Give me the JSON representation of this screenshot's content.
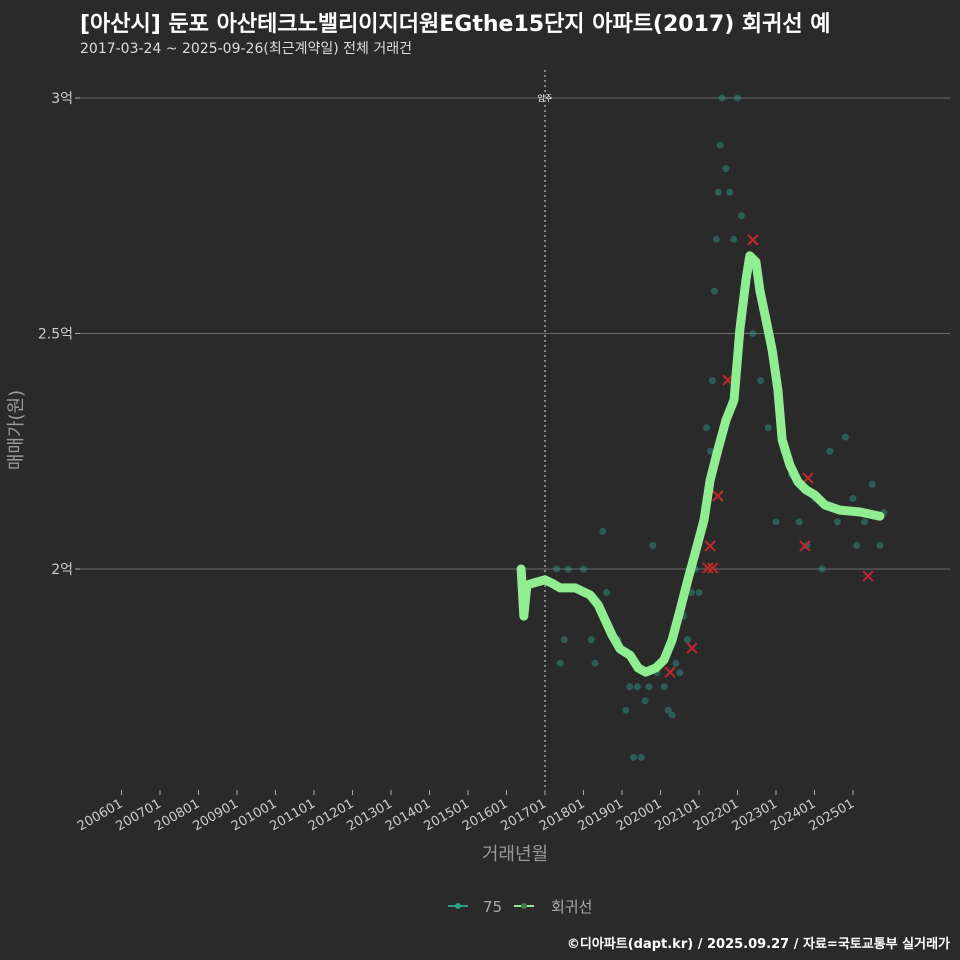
{
  "chart_data": {
    "type": "scatter",
    "title": "[아산시] 둔포 아산테크노밸리이지더원EGthe15단지 아파트(2017) 회귀선 예",
    "subtitle": "2017-03-24 ~ 2025-09-26(최근계약일) 전체 거래건",
    "xlabel": "거래년월",
    "ylabel": "매매가(원)",
    "xlim": [
      2005.6,
      2026.2
    ],
    "ylim": [
      1.55,
      3.06
    ],
    "x_ticks": [
      {
        "v": 2006,
        "label": "200601"
      },
      {
        "v": 2007,
        "label": "200701"
      },
      {
        "v": 2008,
        "label": "200801"
      },
      {
        "v": 2009,
        "label": "200901"
      },
      {
        "v": 2010,
        "label": "201001"
      },
      {
        "v": 2011,
        "label": "201101"
      },
      {
        "v": 2012,
        "label": "201201"
      },
      {
        "v": 2013,
        "label": "201301"
      },
      {
        "v": 2014,
        "label": "201401"
      },
      {
        "v": 2015,
        "label": "201501"
      },
      {
        "v": 2016,
        "label": "201601"
      },
      {
        "v": 2017,
        "label": "201701"
      },
      {
        "v": 2018,
        "label": "201801"
      },
      {
        "v": 2019,
        "label": "201901"
      },
      {
        "v": 2020,
        "label": "202001"
      },
      {
        "v": 2021,
        "label": "202101"
      },
      {
        "v": 2022,
        "label": "202201"
      },
      {
        "v": 2023,
        "label": "202301"
      },
      {
        "v": 2024,
        "label": "202401"
      },
      {
        "v": 2025,
        "label": "202501"
      }
    ],
    "y_ticks": [
      {
        "v": 2,
        "label": "2억"
      },
      {
        "v": 2.5,
        "label": "2.5억"
      },
      {
        "v": 3,
        "label": "3억"
      }
    ],
    "annotation": {
      "x": 2017,
      "label": "입주"
    },
    "legend": {
      "position": "bottom",
      "items": [
        {
          "label": "75",
          "color": "#2a9d8f"
        },
        {
          "label": "회귀선",
          "color": "#90ee90"
        }
      ]
    },
    "series": [
      {
        "name": "75",
        "type": "scatter",
        "color": "#2a9d8f",
        "points": [
          [
            2017.3,
            2.0
          ],
          [
            2017.5,
            1.85
          ],
          [
            2017.4,
            1.8
          ],
          [
            2017.6,
            2.0
          ],
          [
            2017.8,
            1.96
          ],
          [
            2018.0,
            2.0
          ],
          [
            2018.2,
            1.85
          ],
          [
            2018.5,
            2.08
          ],
          [
            2018.6,
            1.95
          ],
          [
            2018.3,
            1.8
          ],
          [
            2018.9,
            1.85
          ],
          [
            2019.1,
            1.7
          ],
          [
            2019.2,
            1.75
          ],
          [
            2019.3,
            1.6
          ],
          [
            2019.4,
            1.75
          ],
          [
            2019.5,
            1.6
          ],
          [
            2019.6,
            1.72
          ],
          [
            2019.7,
            1.75
          ],
          [
            2019.8,
            2.05
          ],
          [
            2019.9,
            1.78
          ],
          [
            2020.0,
            1.8
          ],
          [
            2020.1,
            1.75
          ],
          [
            2020.2,
            1.7
          ],
          [
            2020.3,
            1.69
          ],
          [
            2020.4,
            1.8
          ],
          [
            2020.5,
            1.78
          ],
          [
            2020.6,
            1.9
          ],
          [
            2020.7,
            1.85
          ],
          [
            2020.8,
            1.95
          ],
          [
            2020.9,
            2.0
          ],
          [
            2021.0,
            1.95
          ],
          [
            2021.1,
            2.1
          ],
          [
            2021.2,
            2.3
          ],
          [
            2021.3,
            2.25
          ],
          [
            2021.35,
            2.4
          ],
          [
            2021.4,
            2.59
          ],
          [
            2021.45,
            2.7
          ],
          [
            2021.5,
            2.8
          ],
          [
            2021.55,
            2.9
          ],
          [
            2021.6,
            3.0
          ],
          [
            2021.7,
            2.85
          ],
          [
            2021.8,
            2.8
          ],
          [
            2021.9,
            2.7
          ],
          [
            2022.0,
            3.0
          ],
          [
            2022.1,
            2.75
          ],
          [
            2022.2,
            2.6
          ],
          [
            2022.4,
            2.5
          ],
          [
            2022.6,
            2.4
          ],
          [
            2022.8,
            2.3
          ],
          [
            2023.0,
            2.1
          ],
          [
            2023.2,
            2.25
          ],
          [
            2023.4,
            2.2
          ],
          [
            2023.6,
            2.1
          ],
          [
            2023.8,
            2.05
          ],
          [
            2024.0,
            2.15
          ],
          [
            2024.2,
            2.0
          ],
          [
            2024.4,
            2.25
          ],
          [
            2024.6,
            2.1
          ],
          [
            2024.8,
            2.28
          ],
          [
            2025.0,
            2.15
          ],
          [
            2025.1,
            2.05
          ],
          [
            2025.3,
            2.1
          ],
          [
            2025.5,
            2.18
          ],
          [
            2025.7,
            2.05
          ],
          [
            2025.8,
            2.12
          ]
        ]
      },
      {
        "name": "highlighted",
        "type": "x-marker",
        "color": "#c0282d",
        "points": [
          [
            2020.25,
            1.781
          ],
          [
            2020.82,
            1.832
          ],
          [
            2021.23,
            2.002
          ],
          [
            2021.36,
            2.002
          ],
          [
            2021.29,
            2.049
          ],
          [
            2021.49,
            2.155
          ],
          [
            2021.75,
            2.401
          ],
          [
            2022.4,
            2.699
          ],
          [
            2023.75,
            2.049
          ],
          [
            2023.83,
            2.193
          ],
          [
            2025.39,
            1.985
          ]
        ]
      },
      {
        "name": "회귀선",
        "type": "line",
        "color": "#90ee90",
        "points": [
          [
            2016.38,
            2.0
          ],
          [
            2016.45,
            1.9
          ],
          [
            2016.53,
            1.966
          ],
          [
            2016.69,
            1.97
          ],
          [
            2017.0,
            1.977
          ],
          [
            2017.18,
            1.97
          ],
          [
            2017.39,
            1.96
          ],
          [
            2017.78,
            1.96
          ],
          [
            2018.17,
            1.945
          ],
          [
            2018.38,
            1.924
          ],
          [
            2018.56,
            1.892
          ],
          [
            2018.74,
            1.86
          ],
          [
            2018.95,
            1.83
          ],
          [
            2019.21,
            1.817
          ],
          [
            2019.42,
            1.79
          ],
          [
            2019.62,
            1.781
          ],
          [
            2019.88,
            1.79
          ],
          [
            2020.09,
            1.807
          ],
          [
            2020.3,
            1.849
          ],
          [
            2020.51,
            1.913
          ],
          [
            2020.71,
            1.977
          ],
          [
            2020.92,
            2.04
          ],
          [
            2021.13,
            2.104
          ],
          [
            2021.29,
            2.189
          ],
          [
            2021.49,
            2.253
          ],
          [
            2021.7,
            2.316
          ],
          [
            2021.91,
            2.359
          ],
          [
            2022.06,
            2.507
          ],
          [
            2022.22,
            2.614
          ],
          [
            2022.32,
            2.665
          ],
          [
            2022.48,
            2.652
          ],
          [
            2022.58,
            2.592
          ],
          [
            2022.74,
            2.529
          ],
          [
            2022.9,
            2.465
          ],
          [
            2023.05,
            2.38
          ],
          [
            2023.16,
            2.274
          ],
          [
            2023.36,
            2.221
          ],
          [
            2023.57,
            2.185
          ],
          [
            2023.78,
            2.168
          ],
          [
            2024.01,
            2.157
          ],
          [
            2024.27,
            2.136
          ],
          [
            2024.66,
            2.125
          ],
          [
            2025.18,
            2.121
          ],
          [
            2025.7,
            2.112
          ]
        ]
      }
    ]
  },
  "caption": "©디아파트(dapt.kr) / 2025.09.27 / 자료=국토교통부 실거래가"
}
